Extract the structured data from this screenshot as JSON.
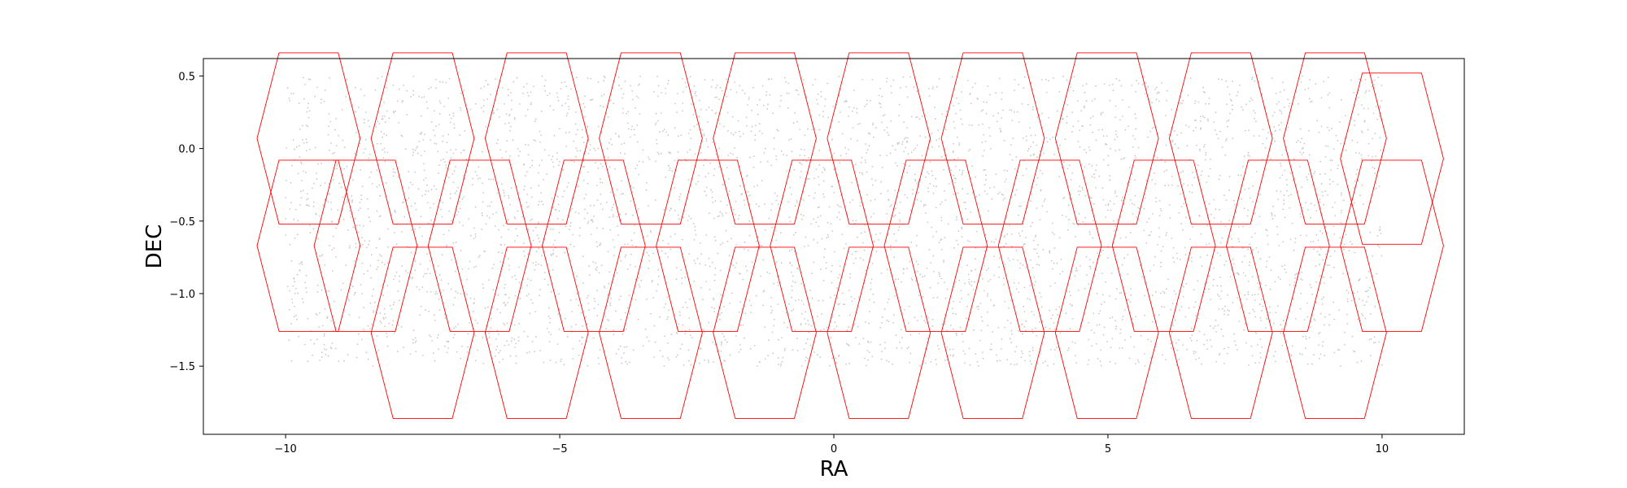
{
  "chart_data": {
    "type": "scatter",
    "xlabel": "RA",
    "ylabel": "DEC",
    "xlim": [
      -11.5,
      11.5
    ],
    "ylim": [
      -1.97,
      0.62
    ],
    "xticks": [
      -10,
      -5,
      0,
      5,
      10
    ],
    "xtick_labels": [
      "−10",
      "−5",
      "0",
      "5",
      "10"
    ],
    "yticks": [
      0.5,
      0.0,
      -0.5,
      -1.0,
      -1.5
    ],
    "ytick_labels": [
      "0.5",
      "0.0",
      "−0.5",
      "−1.0",
      "−1.5"
    ],
    "grid": false,
    "points": {
      "color": "#c8c8c8",
      "x_range": [
        -10.0,
        10.0
      ],
      "y_range": [
        -1.5,
        0.5
      ],
      "description_seed": 12345
    },
    "hexagon_series": {
      "color": "#ff0000",
      "shape_dx": [
        -0.54,
        0.54,
        0.94,
        0.54,
        -0.54,
        -0.94
      ],
      "shape_dy": [
        0.59,
        0.59,
        0.0,
        -0.59,
        -0.59,
        0.0
      ],
      "rows": [
        {
          "y": 0.07,
          "x": [
            -9.58,
            -7.5,
            -5.42,
            -3.34,
            -1.26,
            0.82,
            2.9,
            4.98,
            7.06,
            9.14
          ]
        },
        {
          "y": -0.67,
          "x": [
            -8.54,
            -6.46,
            -4.38,
            -2.3,
            -0.22,
            1.86,
            3.94,
            6.02,
            8.1,
            10.18
          ]
        },
        {
          "y": -1.27,
          "x": [
            -7.5,
            -5.42,
            -3.34,
            -1.26,
            0.82,
            2.9,
            4.98,
            7.06,
            9.14
          ]
        }
      ],
      "extra": [
        {
          "x": -9.58,
          "y": -0.67
        },
        {
          "x": 10.18,
          "y": -0.07
        }
      ]
    }
  }
}
